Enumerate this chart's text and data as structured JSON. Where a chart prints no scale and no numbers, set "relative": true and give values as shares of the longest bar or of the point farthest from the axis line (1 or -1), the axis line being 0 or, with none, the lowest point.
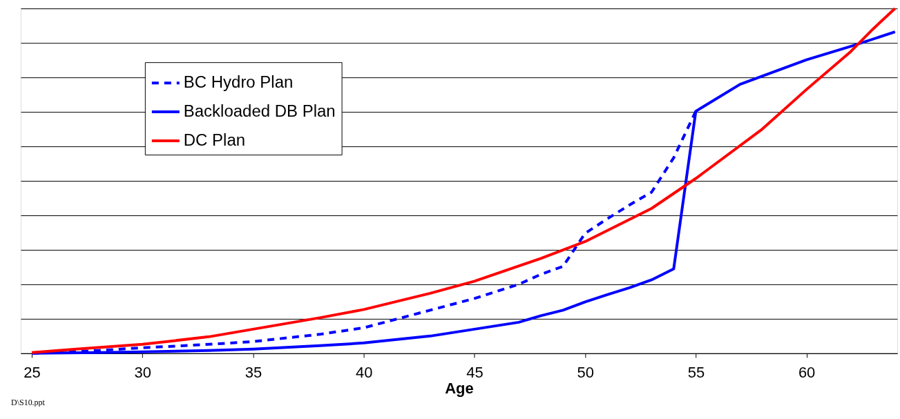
{
  "chart_data": {
    "type": "line",
    "relative": true,
    "xlabel": "Age",
    "xlim": [
      24.5,
      64.1
    ],
    "xticks": [
      25,
      30,
      35,
      40,
      45,
      50,
      55,
      60
    ],
    "grid": "y",
    "legend": "top left",
    "marker": "none",
    "tick_labels": "x",
    "annotations": [
      "D\\S10.ppt"
    ],
    "series": [
      {
        "name": "BC Hydro Plan",
        "color": "#0000ff",
        "line_style": "dashed",
        "x": [
          25,
          28,
          30,
          33,
          35,
          38,
          40,
          43,
          45,
          47,
          48,
          49,
          50,
          51,
          52,
          53,
          54,
          55
        ],
        "values": [
          0,
          0.008,
          0.016,
          0.026,
          0.034,
          0.055,
          0.074,
          0.125,
          0.159,
          0.2,
          0.229,
          0.252,
          0.348,
          0.39,
          0.43,
          0.467,
          0.567,
          0.702
        ]
      },
      {
        "name": "Backloaded DB Plan",
        "color": "#0000ff",
        "line_style": "solid",
        "x": [
          25,
          28,
          30,
          33,
          35,
          38,
          40,
          43,
          45,
          47,
          48,
          49,
          50,
          51,
          52,
          53,
          54,
          55,
          57,
          60,
          62,
          64
        ],
        "values": [
          0,
          0.002,
          0.004,
          0.008,
          0.012,
          0.022,
          0.03,
          0.05,
          0.07,
          0.09,
          0.109,
          0.125,
          0.149,
          0.17,
          0.19,
          0.213,
          0.245,
          0.702,
          0.78,
          0.851,
          0.89,
          0.932
        ]
      },
      {
        "name": "DC Plan",
        "color": "#ff0000",
        "line_style": "solid",
        "x": [
          25,
          27,
          30,
          33,
          35,
          38,
          40,
          43,
          45,
          48,
          50,
          53,
          55,
          58,
          60,
          62,
          63,
          64
        ],
        "values": [
          0.002,
          0.012,
          0.026,
          0.048,
          0.07,
          0.103,
          0.127,
          0.174,
          0.209,
          0.275,
          0.324,
          0.42,
          0.507,
          0.65,
          0.765,
          0.875,
          0.94,
          1
        ]
      }
    ]
  }
}
